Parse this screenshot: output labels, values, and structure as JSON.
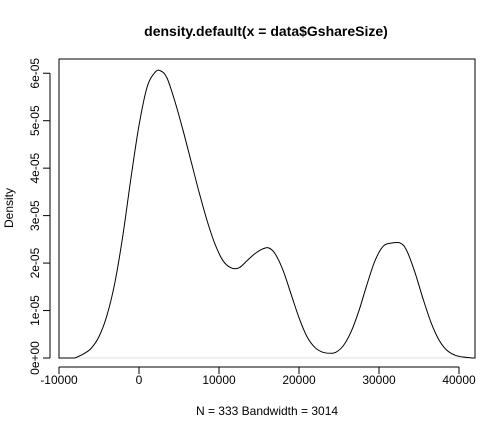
{
  "chart_data": {
    "type": "line",
    "title": "density.default(x = data$GshareSize)",
    "xlabel": "N = 333   Bandwidth = 3014",
    "ylabel": "Density",
    "xlim": [
      -10000,
      42000
    ],
    "ylim": [
      0,
      6.3e-05
    ],
    "x_ticks": [
      -10000,
      0,
      10000,
      20000,
      30000,
      40000
    ],
    "x_tick_labels": [
      "-10000",
      "0",
      "10000",
      "20000",
      "30000",
      "40000"
    ],
    "y_ticks": [
      0,
      1e-05,
      2e-05,
      3e-05,
      4e-05,
      5e-05,
      6e-05
    ],
    "y_tick_labels": [
      "0e+00",
      "1e-05",
      "2e-05",
      "3e-05",
      "4e-05",
      "5e-05",
      "6e-05"
    ],
    "grid": false,
    "baseline": 0,
    "baseline_color": "#e0e0e0",
    "line_color": "#000000",
    "series": [
      {
        "x": [
          -8000,
          -7000,
          -6000,
          -5000,
          -4000,
          -3000,
          -2000,
          -1000,
          0,
          1000,
          2000,
          2700,
          3500,
          4500,
          5500,
          6500,
          7500,
          8500,
          9500,
          10500,
          11500,
          12500,
          13500,
          14500,
          15500,
          16200,
          17000,
          18000,
          19000,
          20000,
          21000,
          22000,
          23000,
          24000,
          24600,
          25500,
          26500,
          27500,
          28500,
          29500,
          30500,
          31500,
          32700,
          33500,
          34500,
          35500,
          36500,
          37500,
          38500,
          39500,
          40500,
          41500
        ],
        "y": [
          0.0,
          8e-07,
          2e-06,
          4.5e-06,
          9e-06,
          1.6e-05,
          2.6e-05,
          3.8e-05,
          4.9e-05,
          5.7e-05,
          6.02e-05,
          6.05e-05,
          5.9e-05,
          5.4e-05,
          4.8e-05,
          4.15e-05,
          3.5e-05,
          2.9e-05,
          2.4e-05,
          2.05e-05,
          1.9e-05,
          1.9e-05,
          2.05e-05,
          2.2e-05,
          2.3e-05,
          2.32e-05,
          2.2e-05,
          1.85e-05,
          1.35e-05,
          8.5e-06,
          4.5e-06,
          2.2e-06,
          1.2e-06,
          1e-06,
          1.2e-06,
          2.5e-06,
          5.5e-06,
          1e-05,
          1.55e-05,
          2.05e-05,
          2.35e-05,
          2.42e-05,
          2.42e-05,
          2.25e-05,
          1.8e-05,
          1.25e-05,
          7.5e-06,
          3.8e-06,
          1.6e-06,
          6e-07,
          2e-07,
          5e-08
        ]
      }
    ]
  }
}
